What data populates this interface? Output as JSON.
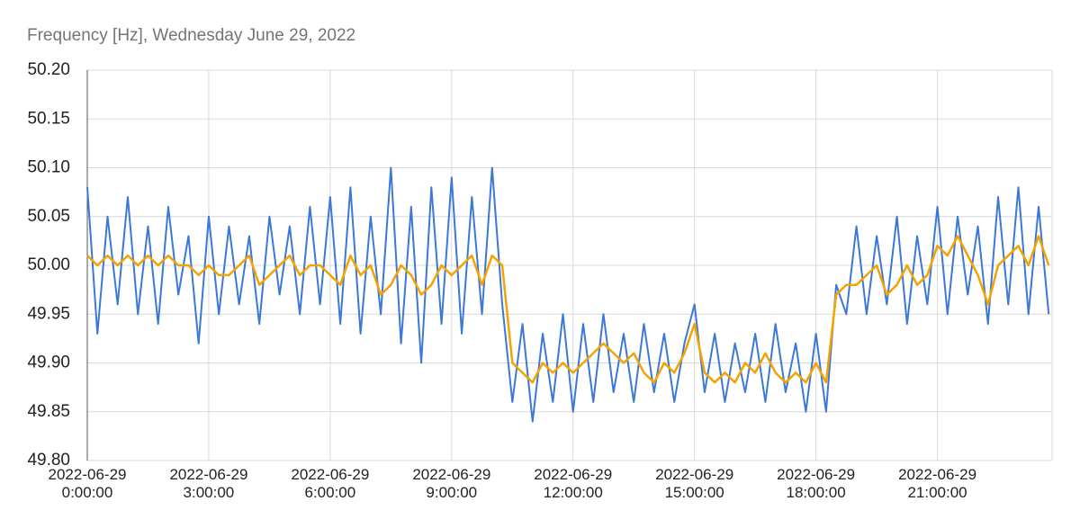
{
  "chart_data": {
    "type": "line",
    "title": "Frequency [Hz], Wednesday June 29, 2022",
    "x": [
      0,
      15,
      30,
      45,
      60,
      75,
      90,
      105,
      120,
      135,
      150,
      165,
      180,
      195,
      210,
      225,
      240,
      255,
      270,
      285,
      300,
      315,
      330,
      345,
      360,
      375,
      390,
      405,
      420,
      435,
      450,
      465,
      480,
      495,
      510,
      525,
      540,
      555,
      570,
      585,
      600,
      615,
      630,
      645,
      660,
      675,
      690,
      705,
      720,
      735,
      750,
      765,
      780,
      795,
      810,
      825,
      840,
      855,
      870,
      885,
      900,
      915,
      930,
      945,
      960,
      975,
      990,
      1005,
      1020,
      1035,
      1050,
      1065,
      1080,
      1095,
      1110,
      1125,
      1140,
      1155,
      1170,
      1185,
      1200,
      1215,
      1230,
      1245,
      1260,
      1275,
      1290,
      1305,
      1320,
      1335,
      1350,
      1365,
      1380,
      1395,
      1410,
      1425
    ],
    "series": [
      {
        "color": "#3c78d8",
        "values": [
          50.08,
          49.93,
          50.05,
          49.96,
          50.07,
          49.95,
          50.04,
          49.94,
          50.06,
          49.97,
          50.03,
          49.92,
          50.05,
          49.95,
          50.04,
          49.96,
          50.03,
          49.94,
          50.05,
          49.97,
          50.04,
          49.95,
          50.06,
          49.96,
          50.07,
          49.94,
          50.08,
          49.93,
          50.05,
          49.95,
          50.1,
          49.92,
          50.06,
          49.9,
          50.08,
          49.94,
          50.09,
          49.93,
          50.07,
          49.95,
          50.1,
          49.96,
          49.86,
          49.94,
          49.84,
          49.93,
          49.86,
          49.95,
          49.85,
          49.94,
          49.86,
          49.95,
          49.87,
          49.93,
          49.86,
          49.94,
          49.87,
          49.93,
          49.86,
          49.92,
          49.96,
          49.87,
          49.93,
          49.86,
          49.92,
          49.87,
          49.93,
          49.86,
          49.94,
          49.87,
          49.92,
          49.85,
          49.93,
          49.85,
          49.98,
          49.95,
          50.04,
          49.95,
          50.03,
          49.96,
          50.05,
          49.94,
          50.03,
          49.96,
          50.06,
          49.95,
          50.05,
          49.97,
          50.04,
          49.94,
          50.07,
          49.96,
          50.08,
          49.95,
          50.06,
          49.95
        ]
      },
      {
        "color": "#f4a300",
        "values": [
          50.01,
          50.0,
          50.01,
          50.0,
          50.01,
          50.0,
          50.01,
          50.0,
          50.01,
          50.0,
          50.0,
          49.99,
          50.0,
          49.99,
          49.99,
          50.0,
          50.01,
          49.98,
          49.99,
          50.0,
          50.01,
          49.99,
          50.0,
          50.0,
          49.99,
          49.98,
          50.01,
          49.99,
          50.0,
          49.97,
          49.98,
          50.0,
          49.99,
          49.97,
          49.98,
          50.0,
          49.99,
          50.0,
          50.01,
          49.98,
          50.01,
          50.0,
          49.9,
          49.89,
          49.88,
          49.9,
          49.89,
          49.9,
          49.89,
          49.9,
          49.91,
          49.92,
          49.91,
          49.9,
          49.91,
          49.89,
          49.88,
          49.9,
          49.89,
          49.91,
          49.94,
          49.89,
          49.88,
          49.89,
          49.88,
          49.9,
          49.89,
          49.91,
          49.89,
          49.88,
          49.89,
          49.88,
          49.9,
          49.88,
          49.97,
          49.98,
          49.98,
          49.99,
          50.0,
          49.97,
          49.98,
          50.0,
          49.98,
          49.99,
          50.02,
          50.01,
          50.03,
          50.01,
          49.99,
          49.96,
          50.0,
          50.01,
          50.02,
          50.0,
          50.03,
          50.0
        ]
      }
    ],
    "xlim": [
      0,
      1430
    ],
    "xticks": [
      {
        "value": 0,
        "label": "2022-06-29\n0:00:00"
      },
      {
        "value": 180,
        "label": "2022-06-29\n3:00:00"
      },
      {
        "value": 360,
        "label": "2022-06-29\n6:00:00"
      },
      {
        "value": 540,
        "label": "2022-06-29\n9:00:00"
      },
      {
        "value": 720,
        "label": "2022-06-29\n12:00:00"
      },
      {
        "value": 900,
        "label": "2022-06-29\n15:00:00"
      },
      {
        "value": 1080,
        "label": "2022-06-29\n18:00:00"
      },
      {
        "value": 1260,
        "label": "2022-06-29\n21:00:00"
      }
    ],
    "ylim": [
      49.8,
      50.2
    ],
    "yticks": [
      {
        "value": 49.8,
        "label": "49.80"
      },
      {
        "value": 49.85,
        "label": "49.85"
      },
      {
        "value": 49.9,
        "label": "49.90"
      },
      {
        "value": 49.95,
        "label": "49.95"
      },
      {
        "value": 50,
        "label": "50.00"
      },
      {
        "value": 50.05,
        "label": "50.05"
      },
      {
        "value": 50.1,
        "label": "50.10"
      },
      {
        "value": 50.15,
        "label": "50.15"
      },
      {
        "value": 50.2,
        "label": "50.20"
      }
    ],
    "grid": true
  }
}
